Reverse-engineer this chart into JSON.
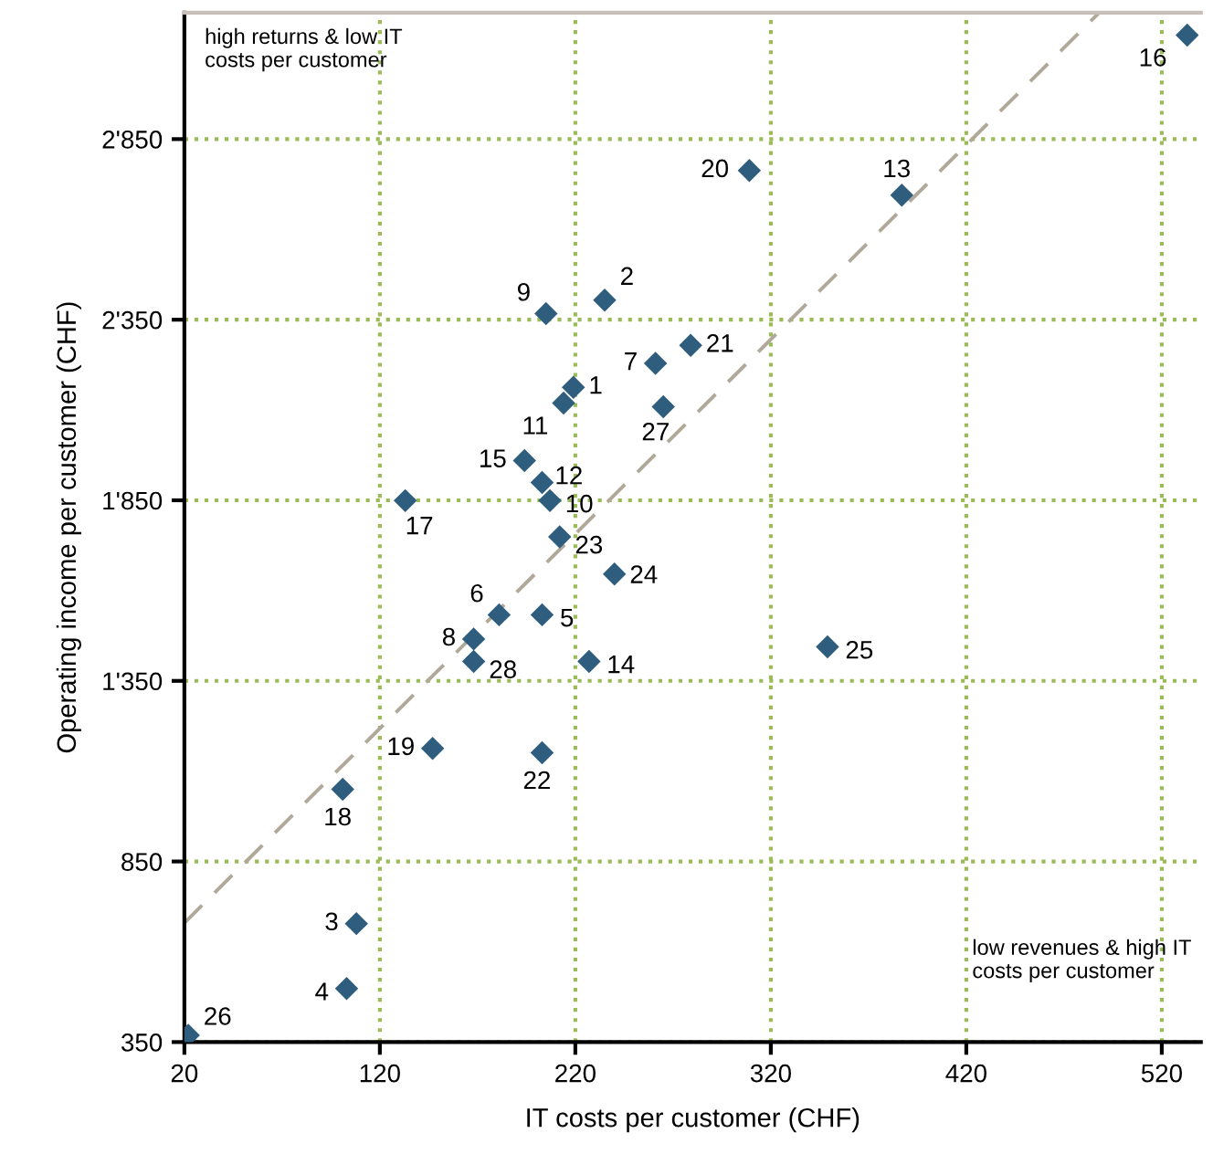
{
  "chart_data": {
    "type": "scatter",
    "xlabel": "IT costs per customer (CHF)",
    "ylabel": "Operating income per customer (CHF)",
    "xlim": [
      20,
      540
    ],
    "ylim": [
      350,
      3200
    ],
    "xticks": [
      20,
      120,
      220,
      320,
      420,
      520
    ],
    "yticks": [
      350,
      850,
      {
        "value": 1350,
        "label": "1'350"
      },
      {
        "value": 1850,
        "label": "1'850"
      },
      {
        "value": 2350,
        "label": "2'350"
      },
      {
        "value": 2850,
        "label": "2'850"
      }
    ],
    "grid": true,
    "annotations": [
      "high returns & low IT costs per customer",
      "low revenues & high IT costs per customer",
      {
        "text": "1",
        "x": 219,
        "y": 2163
      },
      {
        "text": "2",
        "x": 235,
        "y": 2404
      },
      {
        "text": "3",
        "x": 108,
        "y": 678
      },
      {
        "text": "4",
        "x": 103,
        "y": 498
      },
      {
        "text": "5",
        "x": 203,
        "y": 1533
      },
      {
        "text": "6",
        "x": 181,
        "y": 1533
      },
      {
        "text": "7",
        "x": 261,
        "y": 2229
      },
      {
        "text": "8",
        "x": 168,
        "y": 1466
      },
      {
        "text": "9",
        "x": 205,
        "y": 2367
      },
      {
        "text": "10",
        "x": 207,
        "y": 1849
      },
      {
        "text": "11",
        "x": 214,
        "y": 2119
      },
      {
        "text": "12",
        "x": 203,
        "y": 1899
      },
      {
        "text": "13",
        "x": 387,
        "y": 2695
      },
      {
        "text": "14",
        "x": 227,
        "y": 1404
      },
      {
        "text": "15",
        "x": 194,
        "y": 1960
      },
      {
        "text": "16",
        "x": 533,
        "y": 3138
      },
      {
        "text": "17",
        "x": 133,
        "y": 1849
      },
      {
        "text": "18",
        "x": 101,
        "y": 1050
      },
      {
        "text": "19",
        "x": 147,
        "y": 1163
      },
      {
        "text": "20",
        "x": 309,
        "y": 2763
      },
      {
        "text": "21",
        "x": 279,
        "y": 2279
      },
      {
        "text": "22",
        "x": 203,
        "y": 1151
      },
      {
        "text": "23",
        "x": 212,
        "y": 1749
      },
      {
        "text": "24",
        "x": 240,
        "y": 1646
      },
      {
        "text": "25",
        "x": 349,
        "y": 1444
      },
      {
        "text": "26",
        "x": 22,
        "y": 369
      },
      {
        "text": "27",
        "x": 265,
        "y": 2109
      },
      {
        "text": "28",
        "x": 168,
        "y": 1404
      }
    ],
    "series": [
      {
        "color": "#2e5d7e",
        "marker": "diamond",
        "x": [
          219,
          235,
          108,
          103,
          203,
          181,
          261,
          168,
          205,
          207,
          214,
          203,
          387,
          227,
          194,
          533,
          133,
          101,
          147,
          309,
          279,
          203,
          212,
          240,
          349,
          22,
          265,
          168
        ],
        "values": [
          2163,
          2404,
          678,
          498,
          1533,
          1533,
          2229,
          1466,
          2367,
          1849,
          2119,
          1899,
          2695,
          1404,
          1960,
          3138,
          1849,
          1050,
          1163,
          2763,
          2279,
          1151,
          1749,
          1646,
          1444,
          369,
          2109,
          1404
        ]
      },
      {
        "type": "line",
        "color": "#b0a898",
        "line_style": "dashed",
        "x": [
          20,
          488
        ],
        "values": [
          680,
          3200
        ]
      }
    ]
  }
}
